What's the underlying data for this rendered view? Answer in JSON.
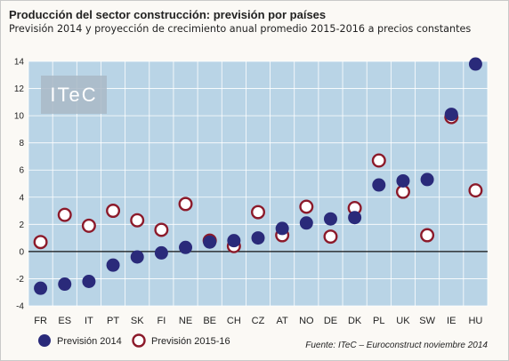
{
  "header": {
    "title": "Producción del sector construcción: previsión por países",
    "subtitle": "Previsión 2014 y proyección de crecimiento anual promedio 2015-2016 a precios constantes"
  },
  "logo_text": "ITeC",
  "source": "Fuente: ITeC – Euroconstruct noviembre 2014",
  "colors": {
    "plot_background": "#b9d4e6",
    "grid": "#ffffff",
    "filled_marker": "#2a2a7a",
    "hollow_marker_stroke": "#8c1a2a",
    "hollow_marker_fill": "#ffffff"
  },
  "chart_data": {
    "type": "scatter",
    "categories": [
      "FR",
      "ES",
      "IT",
      "PT",
      "SK",
      "FI",
      "NE",
      "BE",
      "CH",
      "CZ",
      "AT",
      "NO",
      "DE",
      "DK",
      "PL",
      "UK",
      "SW",
      "IE",
      "HU"
    ],
    "series": [
      {
        "name": "Previsión 2014",
        "marker": "filled-circle",
        "values": [
          -2.7,
          -2.4,
          -2.2,
          -1.0,
          -0.4,
          -0.1,
          0.3,
          0.7,
          0.8,
          1.0,
          1.7,
          2.1,
          2.4,
          2.5,
          4.9,
          5.2,
          5.3,
          10.1,
          13.8
        ]
      },
      {
        "name": "Previsión 2015-16",
        "marker": "hollow-circle",
        "values": [
          0.7,
          2.7,
          1.9,
          3.0,
          2.3,
          1.6,
          3.5,
          0.8,
          0.4,
          2.9,
          1.2,
          3.3,
          1.1,
          3.2,
          6.7,
          4.4,
          1.2,
          9.9,
          4.5
        ]
      }
    ],
    "ylim": [
      -4,
      14
    ],
    "yticks": [
      -4,
      -2,
      0,
      2,
      4,
      6,
      8,
      10,
      12,
      14
    ],
    "grid": true,
    "legend": "bottom-left"
  }
}
